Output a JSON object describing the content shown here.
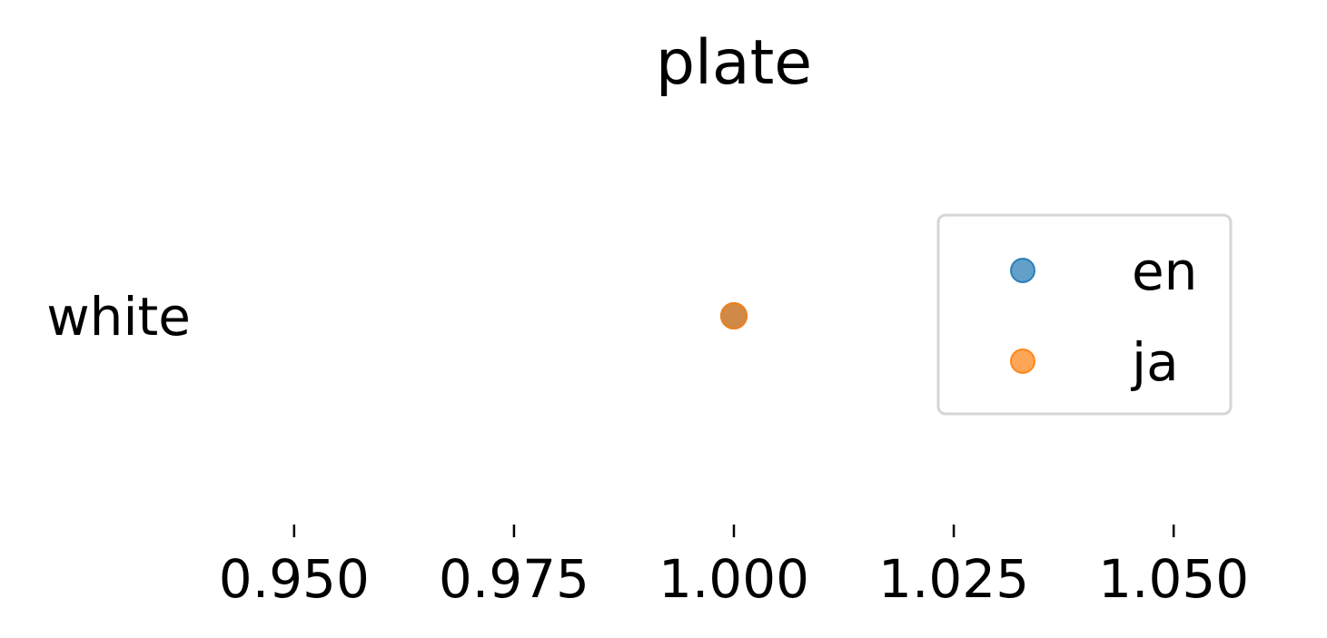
{
  "chart_data": {
    "type": "scatter",
    "title": "plate",
    "xlabel": "",
    "ylabel": "",
    "categories": [
      "white"
    ],
    "xlim": [
      0.94,
      1.06
    ],
    "xticks": [
      "0.950",
      "0.975",
      "1.000",
      "1.025",
      "1.050"
    ],
    "xtick_values": [
      0.95,
      0.975,
      1.0,
      1.025,
      1.05
    ],
    "series": [
      {
        "name": "en",
        "color": "#1f77b4",
        "points": [
          {
            "category": "white",
            "x": 1.0
          }
        ]
      },
      {
        "name": "ja",
        "color": "#ff7f0e",
        "points": [
          {
            "category": "white",
            "x": 1.0
          }
        ]
      }
    ],
    "legend": {
      "position": "right",
      "entries": [
        "en",
        "ja"
      ]
    },
    "grid": false,
    "frame": false
  }
}
